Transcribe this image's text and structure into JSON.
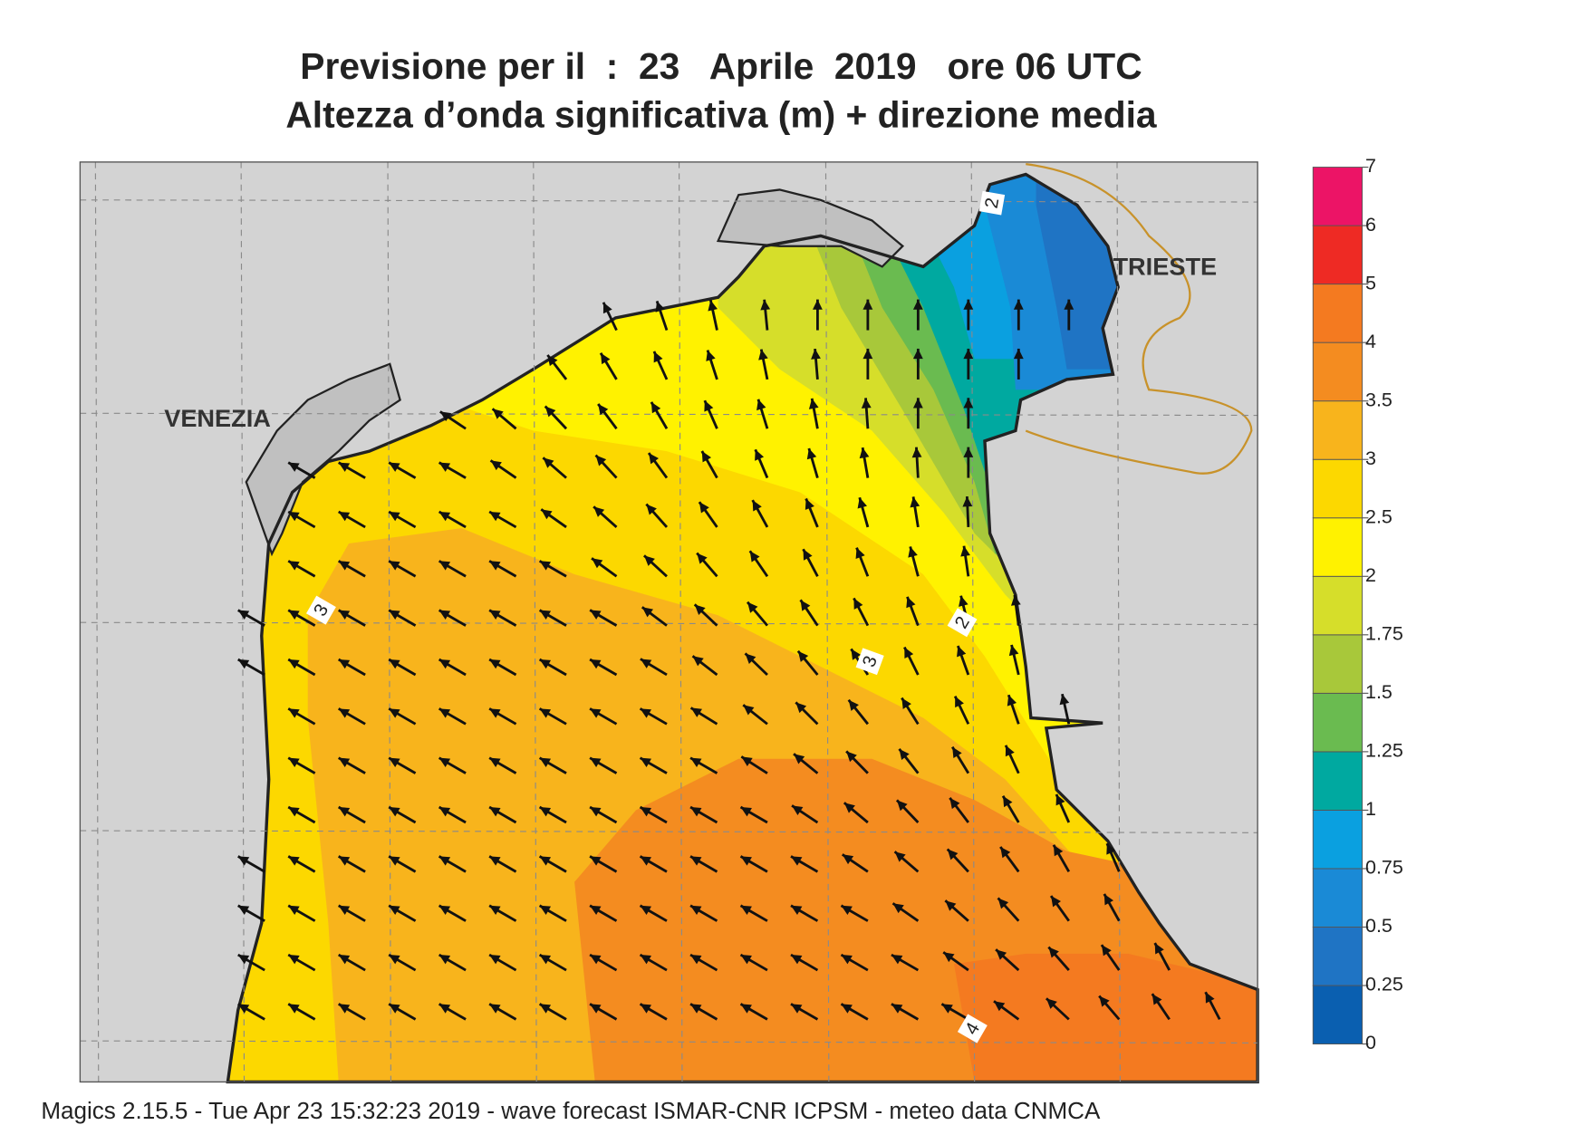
{
  "header": {
    "title": "Previsione per il  :  23   Aprile  2019   ore 06 UTC",
    "subtitle": "Altezza d’onda significativa (m) + direzione media"
  },
  "places": [
    "VENEZIA",
    "TRIESTE"
  ],
  "contour_labels": [
    "3",
    "2",
    "3",
    "4",
    "2"
  ],
  "colorbar": {
    "ticks": [
      0,
      0.25,
      0.5,
      0.75,
      1,
      1.25,
      1.5,
      1.75,
      2,
      2.5,
      3,
      3.5,
      4,
      5,
      6,
      7
    ],
    "colors": [
      "#0a5fb0",
      "#1f74c4",
      "#1a8ad6",
      "#0aa0e0",
      "#00a9a0",
      "#6abb50",
      "#a8c83a",
      "#d6de2a",
      "#fff200",
      "#fcd800",
      "#f8b41c",
      "#f48c20",
      "#f47a20",
      "#ee2a24",
      "#ec1466"
    ]
  },
  "footer": "Magics 2.15.5 - Tue Apr 23 15:32:23 2019 - wave forecast  ISMAR-CNR  ICPSM - meteo data   CNMCA"
}
